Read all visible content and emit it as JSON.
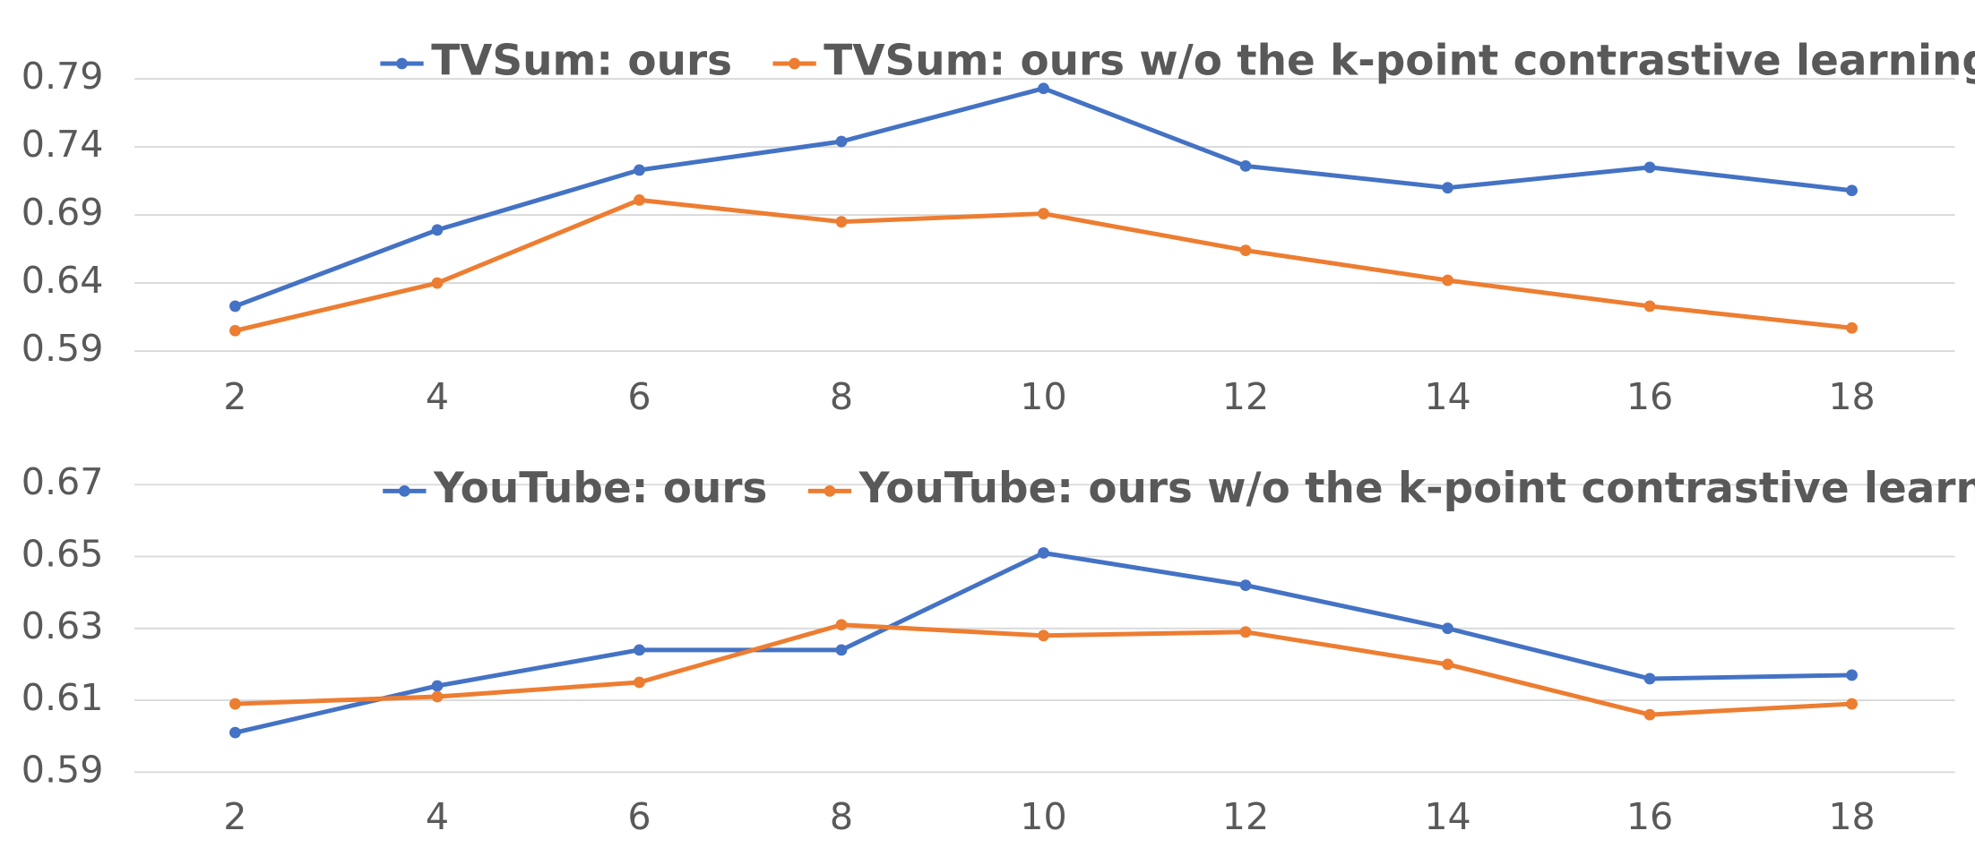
{
  "chart_data": [
    {
      "type": "line",
      "categories": [
        "2",
        "4",
        "6",
        "8",
        "10",
        "12",
        "14",
        "16",
        "18"
      ],
      "series": [
        {
          "name": "TVSum: ours",
          "color": "#4472c4",
          "values": [
            0.623,
            0.679,
            0.723,
            0.744,
            0.783,
            0.726,
            0.71,
            0.725,
            0.708
          ]
        },
        {
          "name": "TVSum: ours w/o the k-point contrastive learning",
          "color": "#ed7d31",
          "values": [
            0.605,
            0.64,
            0.701,
            0.685,
            0.691,
            0.664,
            0.642,
            0.623,
            0.607
          ]
        }
      ],
      "ylim": [
        0.59,
        0.79
      ],
      "yticks": [
        0.59,
        0.64,
        0.69,
        0.74,
        0.79
      ],
      "grid": true,
      "legend": "top"
    },
    {
      "type": "line",
      "categories": [
        "2",
        "4",
        "6",
        "8",
        "10",
        "12",
        "14",
        "16",
        "18"
      ],
      "series": [
        {
          "name": "YouTube: ours",
          "color": "#4472c4",
          "values": [
            0.601,
            0.614,
            0.624,
            0.624,
            0.651,
            0.642,
            0.63,
            0.616,
            0.617
          ]
        },
        {
          "name": "YouTube: ours w/o the k-point contrastive learning",
          "color": "#ed7d31",
          "values": [
            0.609,
            0.611,
            0.615,
            0.631,
            0.628,
            0.629,
            0.62,
            0.606,
            0.609
          ]
        }
      ],
      "ylim": [
        0.59,
        0.67
      ],
      "yticks": [
        0.59,
        0.61,
        0.63,
        0.65,
        0.67
      ],
      "grid": true,
      "legend": "top"
    }
  ]
}
